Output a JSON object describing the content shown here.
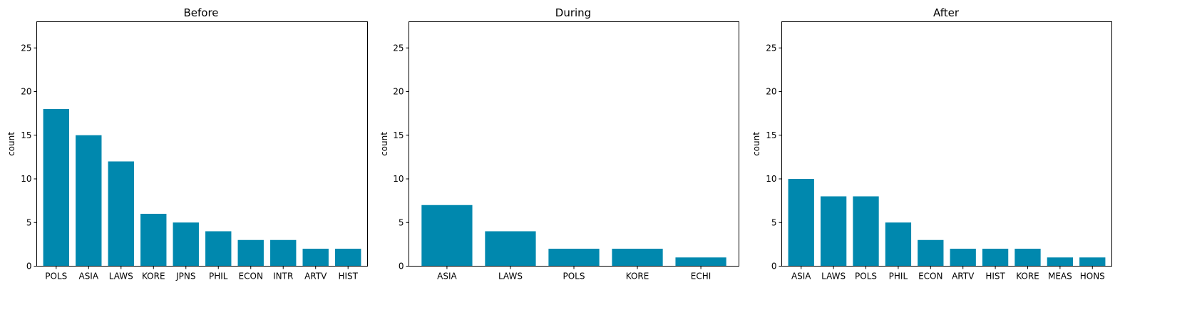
{
  "chart_data": [
    {
      "type": "bar",
      "title": "Before",
      "xlabel": "",
      "ylabel": "count",
      "ylim": [
        0,
        28
      ],
      "yticks": [
        0,
        5,
        10,
        15,
        20,
        25
      ],
      "categories": [
        "POLS",
        "ASIA",
        "LAWS",
        "KORE",
        "JPNS",
        "PHIL",
        "ECON",
        "INTR",
        "ARTV",
        "HIST"
      ],
      "values": [
        18,
        15,
        12,
        6,
        5,
        4,
        3,
        3,
        2,
        2
      ],
      "color": "#0088AE",
      "grid": false
    },
    {
      "type": "bar",
      "title": "During",
      "xlabel": "",
      "ylabel": "count",
      "ylim": [
        0,
        28
      ],
      "yticks": [
        0,
        5,
        10,
        15,
        20,
        25
      ],
      "categories": [
        "ASIA",
        "LAWS",
        "POLS",
        "KORE",
        "ECHI"
      ],
      "values": [
        7,
        4,
        2,
        2,
        1
      ],
      "color": "#0088AE",
      "grid": false
    },
    {
      "type": "bar",
      "title": "After",
      "xlabel": "",
      "ylabel": "count",
      "ylim": [
        0,
        28
      ],
      "yticks": [
        0,
        5,
        10,
        15,
        20,
        25
      ],
      "categories": [
        "ASIA",
        "LAWS",
        "POLS",
        "PHIL",
        "ECON",
        "ARTV",
        "HIST",
        "KORE",
        "MEAS",
        "HONS"
      ],
      "values": [
        10,
        8,
        8,
        5,
        3,
        2,
        2,
        2,
        1,
        1
      ],
      "color": "#0088AE",
      "grid": false
    }
  ]
}
